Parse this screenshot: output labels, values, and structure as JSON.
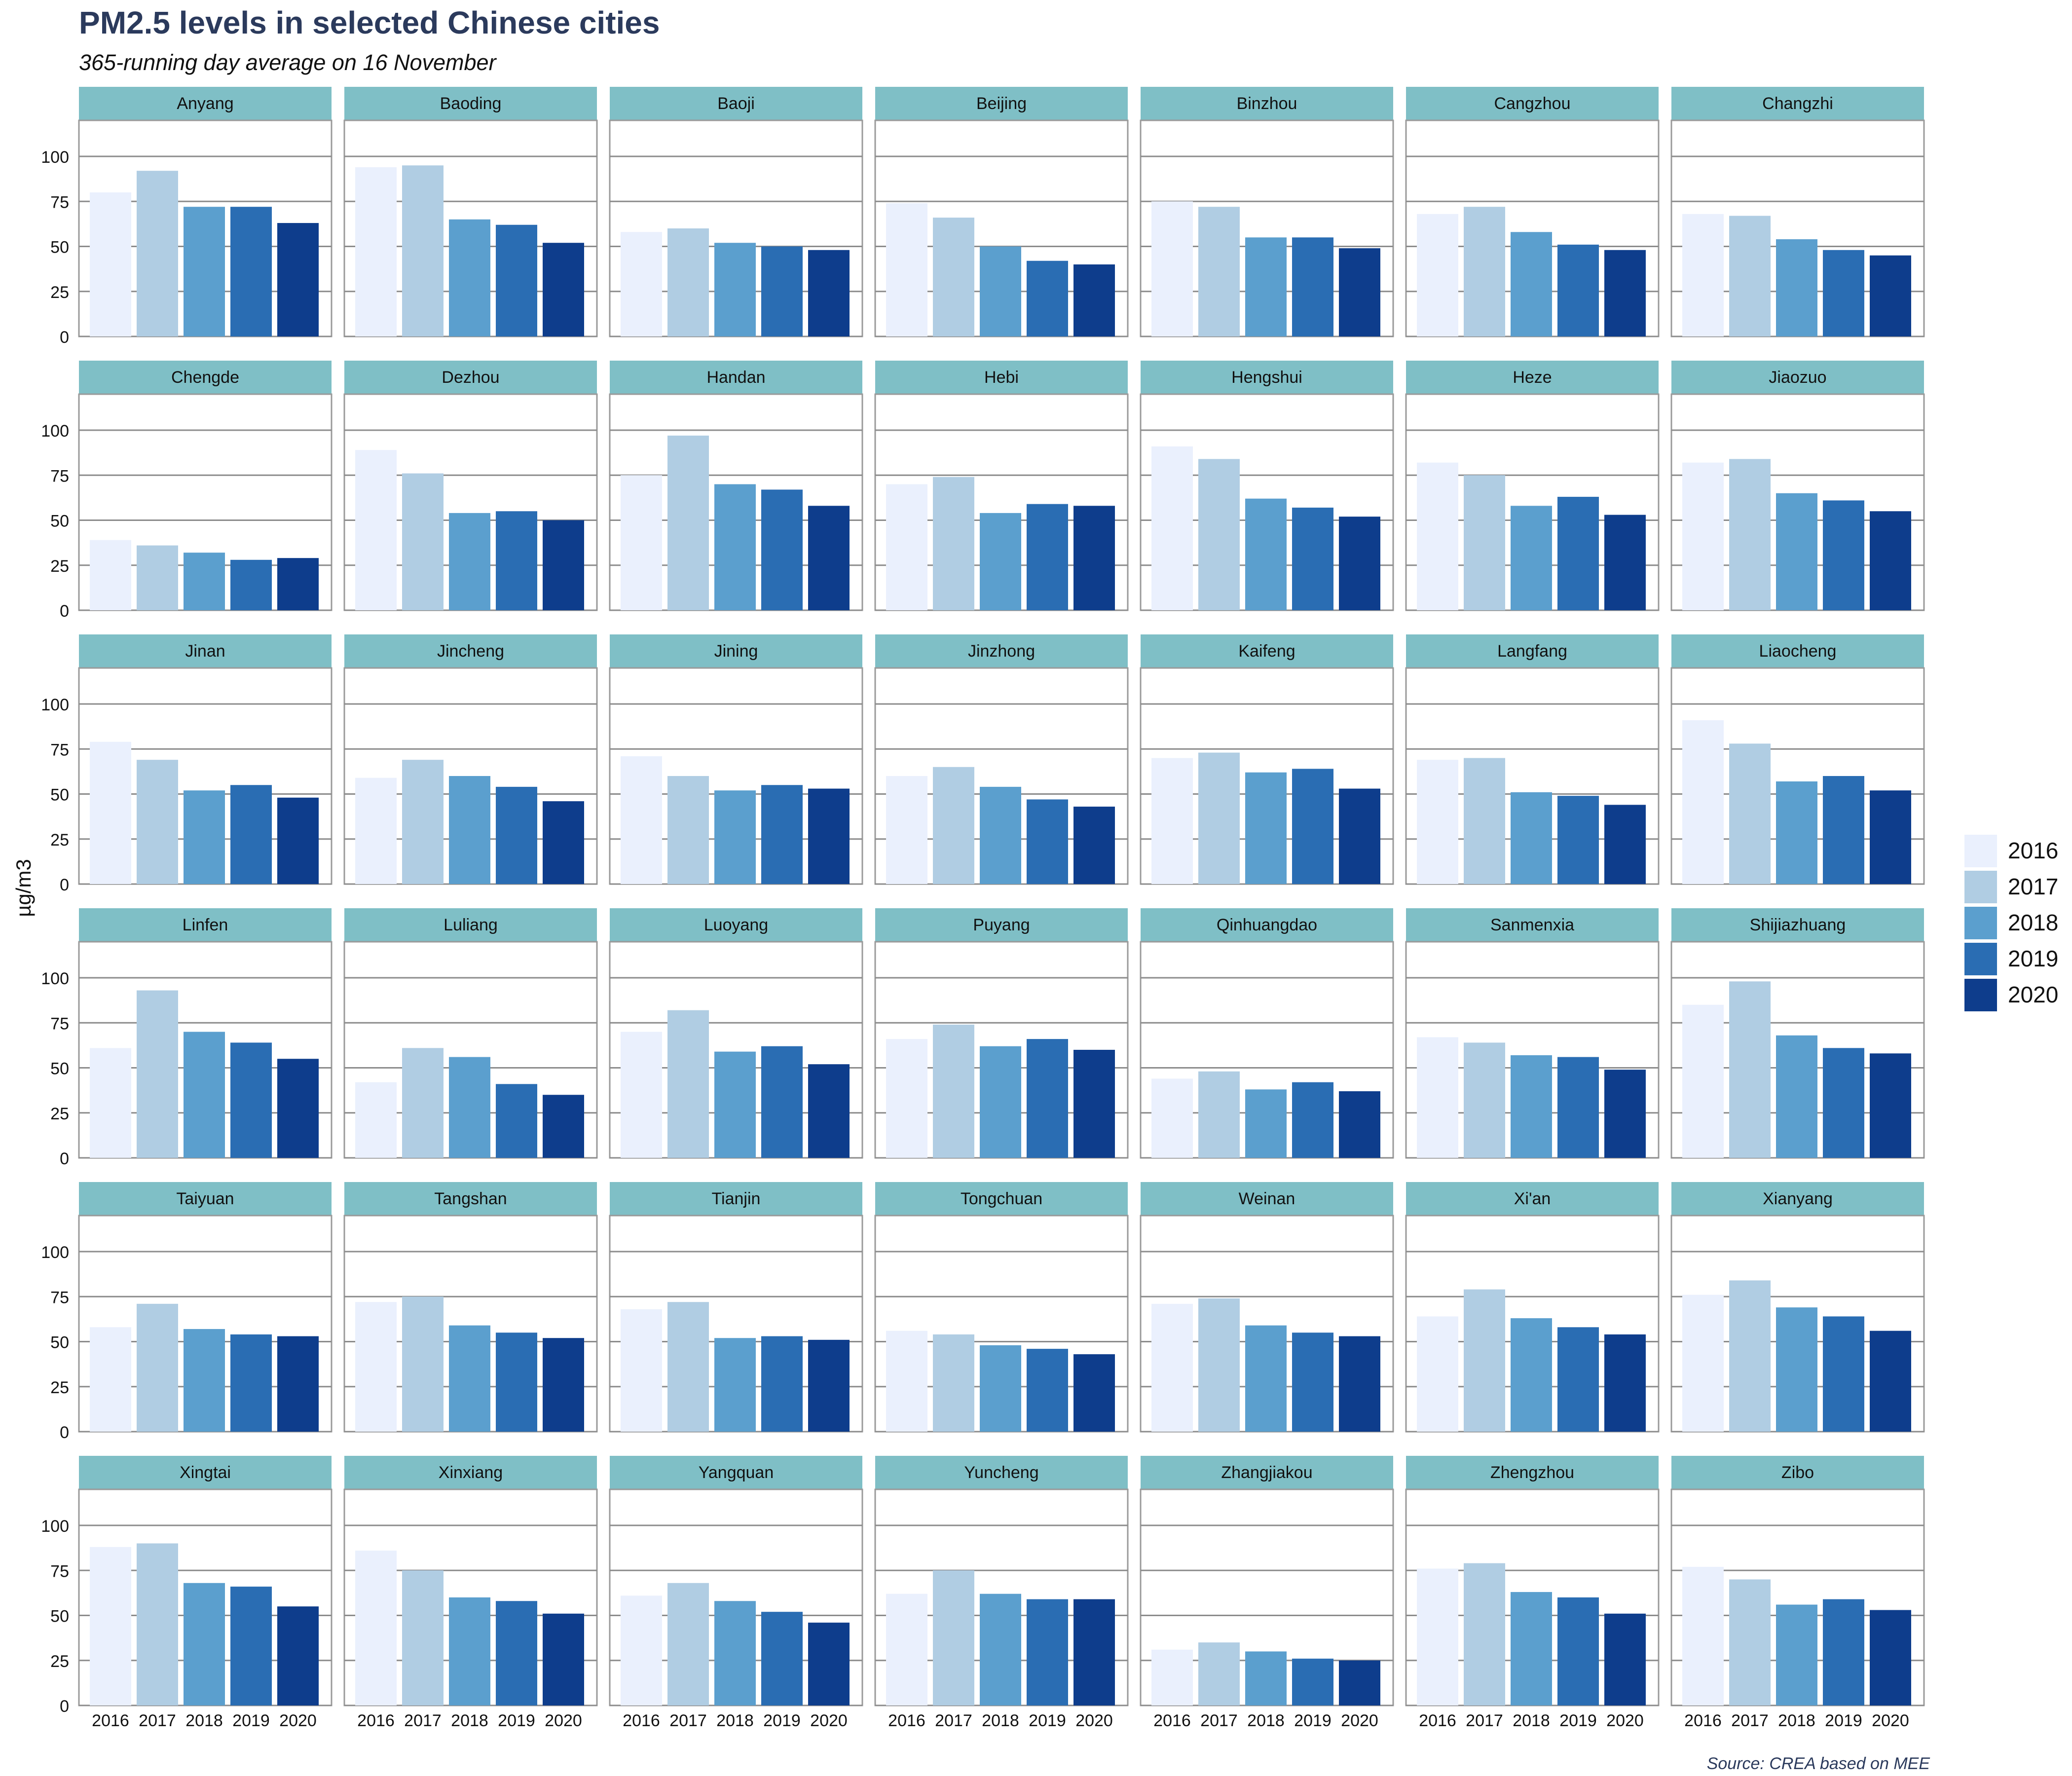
{
  "chart_data": {
    "type": "bar",
    "title": "PM2.5 levels in selected Chinese cities",
    "subtitle": "365-running day average on 16 November",
    "ylabel": "µg/m3",
    "ylim": [
      0,
      120
    ],
    "yticks": [
      0,
      25,
      50,
      75,
      100
    ],
    "caption": "Source: CREA based on MEE",
    "categories": [
      "2016",
      "2017",
      "2018",
      "2019",
      "2020"
    ],
    "colors": [
      "#eaf0fd",
      "#b0cde3",
      "#5b9fce",
      "#2a6db3",
      "#0e3d8c"
    ],
    "strip_color": "#7fbfc6",
    "legend": {
      "position": "right",
      "entries": [
        "2016",
        "2017",
        "2018",
        "2019",
        "2020"
      ]
    },
    "grid": true,
    "panels": [
      {
        "city": "Anyang",
        "values": [
          80,
          92,
          72,
          72,
          63
        ]
      },
      {
        "city": "Baoding",
        "values": [
          94,
          95,
          65,
          62,
          52
        ]
      },
      {
        "city": "Baoji",
        "values": [
          58,
          60,
          52,
          50,
          48
        ]
      },
      {
        "city": "Beijing",
        "values": [
          74,
          66,
          50,
          42,
          40
        ]
      },
      {
        "city": "Binzhou",
        "values": [
          75,
          72,
          55,
          55,
          49
        ]
      },
      {
        "city": "Cangzhou",
        "values": [
          68,
          72,
          58,
          51,
          48
        ]
      },
      {
        "city": "Changzhi",
        "values": [
          68,
          67,
          54,
          48,
          45
        ]
      },
      {
        "city": "Chengde",
        "values": [
          39,
          36,
          32,
          28,
          29
        ]
      },
      {
        "city": "Dezhou",
        "values": [
          89,
          76,
          54,
          55,
          50
        ]
      },
      {
        "city": "Handan",
        "values": [
          75,
          97,
          70,
          67,
          58
        ]
      },
      {
        "city": "Hebi",
        "values": [
          70,
          74,
          54,
          59,
          58
        ]
      },
      {
        "city": "Hengshui",
        "values": [
          91,
          84,
          62,
          57,
          52
        ]
      },
      {
        "city": "Heze",
        "values": [
          82,
          75,
          58,
          63,
          53
        ]
      },
      {
        "city": "Jiaozuo",
        "values": [
          82,
          84,
          65,
          61,
          55
        ]
      },
      {
        "city": "Jinan",
        "values": [
          79,
          69,
          52,
          55,
          48
        ]
      },
      {
        "city": "Jincheng",
        "values": [
          59,
          69,
          60,
          54,
          46
        ]
      },
      {
        "city": "Jining",
        "values": [
          71,
          60,
          52,
          55,
          53
        ]
      },
      {
        "city": "Jinzhong",
        "values": [
          60,
          65,
          54,
          47,
          43
        ]
      },
      {
        "city": "Kaifeng",
        "values": [
          70,
          73,
          62,
          64,
          53
        ]
      },
      {
        "city": "Langfang",
        "values": [
          69,
          70,
          51,
          49,
          44
        ]
      },
      {
        "city": "Liaocheng",
        "values": [
          91,
          78,
          57,
          60,
          52
        ]
      },
      {
        "city": "Linfen",
        "values": [
          61,
          93,
          70,
          64,
          55
        ]
      },
      {
        "city": "Luliang",
        "values": [
          42,
          61,
          56,
          41,
          35
        ]
      },
      {
        "city": "Luoyang",
        "values": [
          70,
          82,
          59,
          62,
          52
        ]
      },
      {
        "city": "Puyang",
        "values": [
          66,
          74,
          62,
          66,
          60
        ]
      },
      {
        "city": "Qinhuangdao",
        "values": [
          44,
          48,
          38,
          42,
          37
        ]
      },
      {
        "city": "Sanmenxia",
        "values": [
          67,
          64,
          57,
          56,
          49
        ]
      },
      {
        "city": "Shijiazhuang",
        "values": [
          85,
          98,
          68,
          61,
          58
        ]
      },
      {
        "city": "Taiyuan",
        "values": [
          58,
          71,
          57,
          54,
          53
        ]
      },
      {
        "city": "Tangshan",
        "values": [
          72,
          75,
          59,
          55,
          52
        ]
      },
      {
        "city": "Tianjin",
        "values": [
          68,
          72,
          52,
          53,
          51
        ]
      },
      {
        "city": "Tongchuan",
        "values": [
          56,
          54,
          48,
          46,
          43
        ]
      },
      {
        "city": "Weinan",
        "values": [
          71,
          74,
          59,
          55,
          53
        ]
      },
      {
        "city": "Xi'an",
        "values": [
          64,
          79,
          63,
          58,
          54
        ]
      },
      {
        "city": "Xianyang",
        "values": [
          76,
          84,
          69,
          64,
          56
        ]
      },
      {
        "city": "Xingtai",
        "values": [
          88,
          90,
          68,
          66,
          55
        ]
      },
      {
        "city": "Xinxiang",
        "values": [
          86,
          75,
          60,
          58,
          51
        ]
      },
      {
        "city": "Yangquan",
        "values": [
          61,
          68,
          58,
          52,
          46
        ]
      },
      {
        "city": "Yuncheng",
        "values": [
          62,
          75,
          62,
          59,
          59
        ]
      },
      {
        "city": "Zhangjiakou",
        "values": [
          31,
          35,
          30,
          26,
          25
        ]
      },
      {
        "city": "Zhengzhou",
        "values": [
          76,
          79,
          63,
          60,
          51
        ]
      },
      {
        "city": "Zibo",
        "values": [
          77,
          70,
          56,
          59,
          53
        ]
      }
    ]
  }
}
